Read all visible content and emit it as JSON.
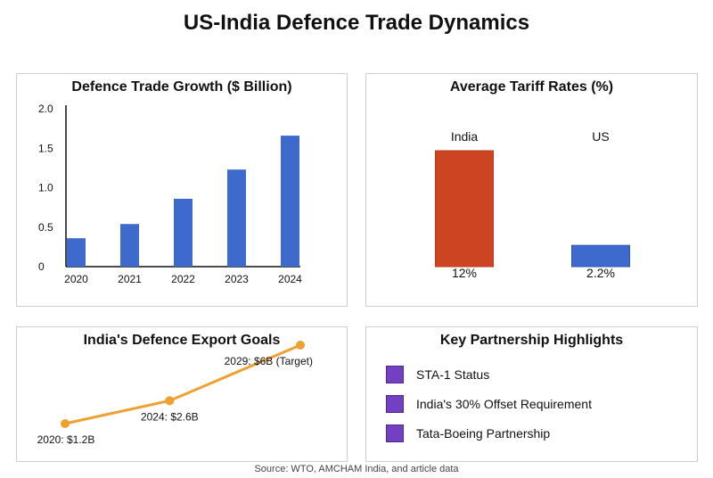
{
  "page": {
    "title": "US-India Defence Trade Dynamics",
    "source": "Source: WTO, AMCHAM India, and article data"
  },
  "chart_data": [
    {
      "type": "bar",
      "title": "Defence Trade Growth ($ Billion)",
      "categories": [
        "2020",
        "2021",
        "2022",
        "2023",
        "2024"
      ],
      "values": [
        0.36,
        0.54,
        0.86,
        1.23,
        1.66
      ],
      "y_ticks": [
        "0",
        "0.5",
        "1.0",
        "1.5",
        "2.0"
      ],
      "ylim": [
        0,
        2.0
      ],
      "color": "#3d6acc"
    },
    {
      "type": "bar",
      "title": "Average Tariff Rates (%)",
      "categories": [
        "India",
        "US"
      ],
      "values": [
        12,
        2.2
      ],
      "value_labels": [
        "12%",
        "2.2%"
      ],
      "colors": [
        "#cc4422",
        "#3d6acc"
      ]
    },
    {
      "type": "line",
      "title": "India's Defence Export Goals",
      "x": [
        2020,
        2024,
        2029
      ],
      "values": [
        1.2,
        2.6,
        6
      ],
      "point_labels": [
        "2020: $1.2B",
        "2024: $2.6B",
        "2029: $6B (Target)"
      ],
      "color": "#f0a030"
    },
    {
      "type": "table",
      "title": "Key Partnership Highlights",
      "items": [
        "STA-1 Status",
        "India's 30% Offset Requirement",
        "Tata-Boeing Partnership"
      ],
      "color": "#7340c4"
    }
  ]
}
